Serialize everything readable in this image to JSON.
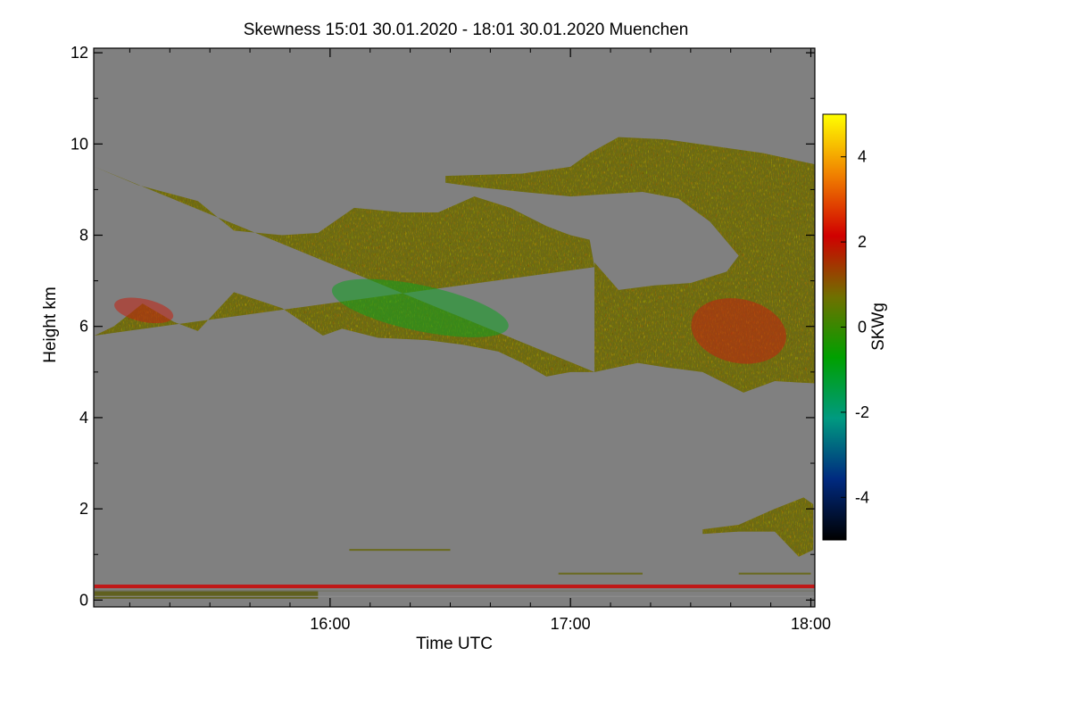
{
  "chart_data": {
    "type": "heatmap",
    "title": "Skewness   15:01 30.01.2020 - 18:01 30.01.2020 Muenchen",
    "xlabel": "Time UTC",
    "ylabel": "Height km",
    "x_range_hours": [
      15.0167,
      18.0167
    ],
    "x_ticks": [
      {
        "value": 16,
        "label": "16:00"
      },
      {
        "value": 17,
        "label": "17:00"
      },
      {
        "value": 18,
        "label": "18:00"
      }
    ],
    "y_range_km": [
      -0.15,
      12.1
    ],
    "y_ticks": [
      {
        "value": 0,
        "label": "0"
      },
      {
        "value": 2,
        "label": "2"
      },
      {
        "value": 4,
        "label": "4"
      },
      {
        "value": 6,
        "label": "6"
      },
      {
        "value": 8,
        "label": "8"
      },
      {
        "value": 10,
        "label": "10"
      },
      {
        "value": 12,
        "label": "12"
      }
    ],
    "colorbar": {
      "label": "SKWg",
      "range": [
        -5,
        5
      ],
      "ticks": [
        {
          "value": 4,
          "label": "4"
        },
        {
          "value": 2,
          "label": "2"
        },
        {
          "value": 0,
          "label": "0"
        },
        {
          "value": -2,
          "label": "-2"
        },
        {
          "value": -4,
          "label": "-4"
        }
      ],
      "colors": [
        "#000000",
        "#002a80",
        "#009a80",
        "#00a000",
        "#707000",
        "#d00000",
        "#f08000",
        "#ffff00"
      ]
    },
    "background_color": "#808080",
    "regions": [
      {
        "name": "main-cloud-layer",
        "top": [
          [
            15.02,
            9.5
          ],
          [
            15.2,
            9.1
          ],
          [
            15.45,
            8.75
          ],
          [
            15.6,
            8.1
          ],
          [
            15.8,
            8.0
          ],
          [
            15.95,
            8.05
          ],
          [
            16.1,
            8.6
          ],
          [
            16.3,
            8.5
          ],
          [
            16.45,
            8.5
          ],
          [
            16.6,
            8.85
          ],
          [
            16.75,
            8.6
          ],
          [
            16.9,
            8.2
          ],
          [
            17.0,
            8.0
          ],
          [
            17.08,
            7.9
          ],
          [
            17.1,
            7.3
          ]
        ],
        "bottom": [
          [
            15.02,
            5.8
          ],
          [
            15.1,
            6.0
          ],
          [
            15.22,
            6.5
          ],
          [
            15.35,
            6.1
          ],
          [
            15.45,
            5.9
          ],
          [
            15.6,
            6.75
          ],
          [
            15.8,
            6.4
          ],
          [
            15.97,
            5.8
          ],
          [
            16.05,
            5.95
          ],
          [
            16.2,
            5.75
          ],
          [
            16.4,
            5.7
          ],
          [
            16.55,
            5.6
          ],
          [
            16.7,
            5.45
          ],
          [
            16.8,
            5.2
          ],
          [
            16.9,
            4.9
          ],
          [
            17.0,
            5.0
          ],
          [
            17.1,
            5.0
          ]
        ]
      },
      {
        "name": "upper-cloud-layer",
        "top": [
          [
            16.48,
            9.3
          ],
          [
            16.8,
            9.35
          ],
          [
            17.0,
            9.5
          ],
          [
            17.08,
            9.8
          ],
          [
            17.2,
            10.15
          ],
          [
            17.4,
            10.1
          ],
          [
            17.6,
            9.95
          ],
          [
            17.8,
            9.8
          ],
          [
            18.02,
            9.55
          ]
        ],
        "bottom": [
          [
            18.02,
            4.75
          ],
          [
            17.85,
            4.8
          ],
          [
            17.72,
            4.55
          ],
          [
            17.55,
            5.0
          ],
          [
            17.4,
            5.1
          ],
          [
            17.28,
            5.2
          ],
          [
            17.1,
            5.0
          ],
          [
            17.1,
            7.4
          ],
          [
            17.2,
            6.8
          ],
          [
            17.35,
            6.9
          ],
          [
            17.5,
            6.95
          ],
          [
            17.65,
            7.2
          ],
          [
            17.7,
            7.55
          ],
          [
            17.58,
            8.3
          ],
          [
            17.45,
            8.8
          ],
          [
            17.3,
            8.95
          ],
          [
            17.15,
            8.9
          ],
          [
            17.0,
            8.85
          ],
          [
            16.8,
            8.95
          ],
          [
            16.62,
            9.05
          ],
          [
            16.48,
            9.15
          ]
        ]
      },
      {
        "name": "low-cloud-patch",
        "top": [
          [
            17.55,
            1.55
          ],
          [
            17.7,
            1.65
          ],
          [
            17.85,
            2.0
          ],
          [
            17.97,
            2.25
          ],
          [
            18.01,
            2.1
          ]
        ],
        "bottom": [
          [
            18.01,
            1.1
          ],
          [
            17.95,
            0.95
          ],
          [
            17.85,
            1.5
          ],
          [
            17.7,
            1.5
          ],
          [
            17.55,
            1.45
          ]
        ]
      }
    ],
    "strong_features": [
      {
        "name": "green-band",
        "x": [
          16.0,
          16.75
        ],
        "y": [
          5.9,
          6.9
        ],
        "value": -1.0
      },
      {
        "name": "red-patch-left",
        "x": [
          15.1,
          15.35
        ],
        "y": [
          6.1,
          6.6
        ],
        "value": 1.3
      },
      {
        "name": "red-patch-right",
        "x": [
          17.5,
          17.9
        ],
        "y": [
          5.2,
          6.6
        ],
        "value": 1.2
      }
    ],
    "horizontal_bands": [
      {
        "name": "surface-red-band",
        "y": 0.3,
        "thickness": 0.08,
        "x": [
          15.02,
          18.02
        ],
        "color": "#c01818"
      },
      {
        "name": "surface-noise",
        "y": 0.12,
        "thickness": 0.18,
        "x": [
          15.02,
          15.95
        ],
        "color": "#606020"
      },
      {
        "name": "olive-band-1",
        "y": 1.1,
        "thickness": 0.04,
        "x": [
          16.08,
          16.5
        ],
        "color": "#6a6a20"
      },
      {
        "name": "olive-band-2",
        "y": 0.58,
        "thickness": 0.04,
        "x": [
          16.95,
          17.3
        ],
        "color": "#6a6a20"
      },
      {
        "name": "olive-band-3",
        "y": 0.58,
        "thickness": 0.04,
        "x": [
          17.7,
          18.0
        ],
        "color": "#6a6a20"
      },
      {
        "name": "thin-line-0.2",
        "y": 0.2,
        "thickness": 0.02,
        "x": [
          15.02,
          18.02
        ],
        "color": "#707060"
      },
      {
        "name": "thin-line-0.1",
        "y": 0.08,
        "thickness": 0.02,
        "x": [
          15.02,
          18.02
        ],
        "color": "#909090"
      }
    ]
  }
}
